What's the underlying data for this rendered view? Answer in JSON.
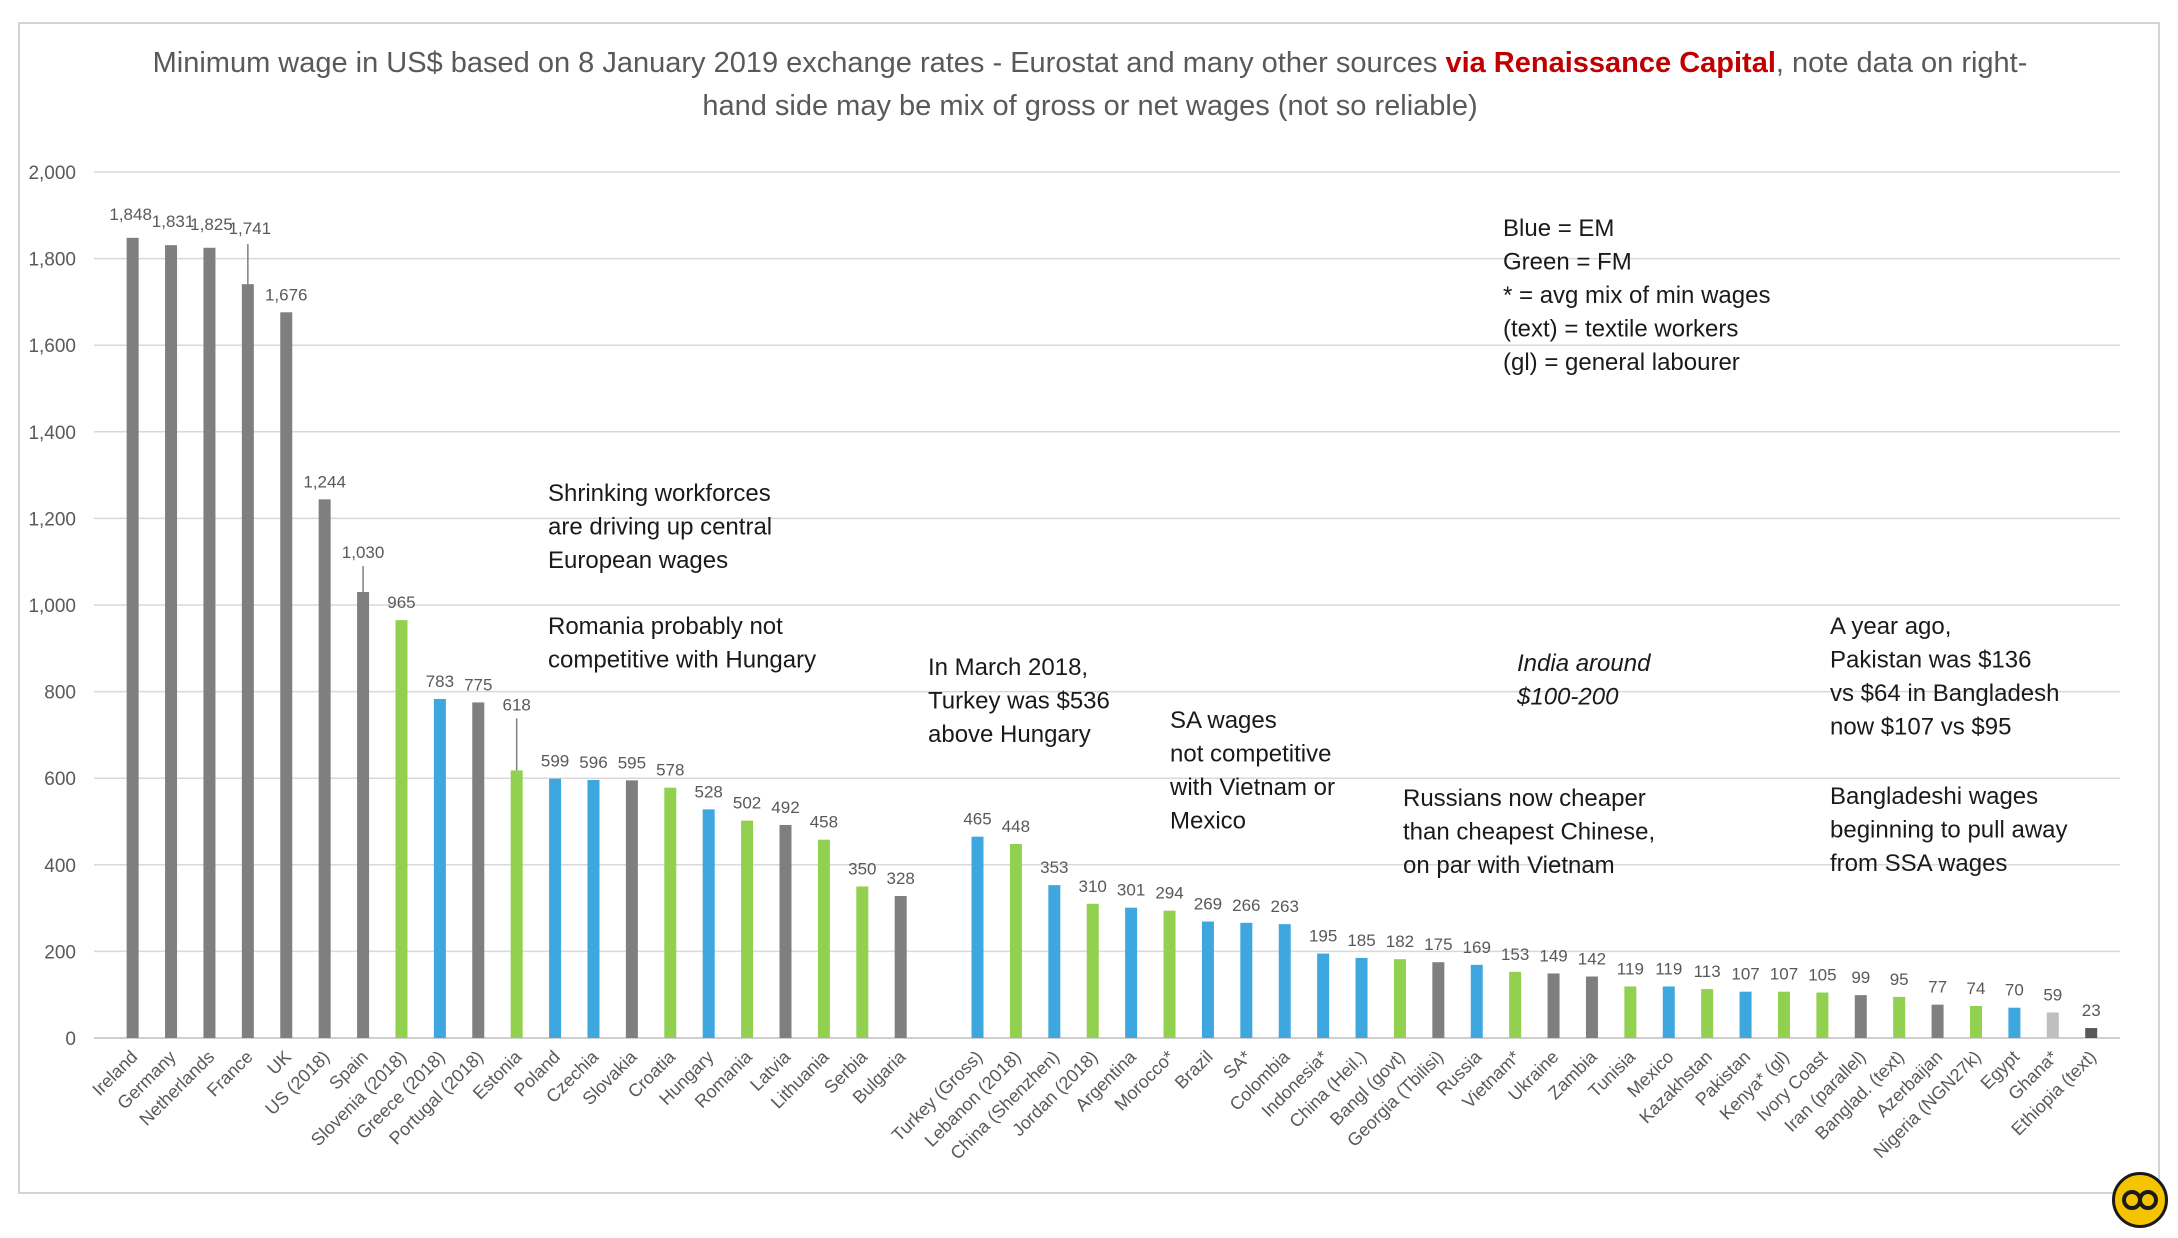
{
  "title": {
    "part1": "Minimum wage in US$ based on 8 January 2019 exchange rates - Eurostat and many other sources ",
    "red": "via Renaissance Capital",
    "part2": ", note data on right-hand side may be mix of gross or net wages (not so reliable)"
  },
  "colors": {
    "developed": "#7f7f7f",
    "em_blue": "#3fa7e0",
    "fm_green": "#92d050",
    "light_gray": "#bfbfbf",
    "dark_gray": "#595959",
    "gridline": "#d9d9d9",
    "axis_text": "#595959"
  },
  "chart_data": {
    "type": "bar",
    "ylim": [
      0,
      2000
    ],
    "yticks": [
      "0",
      "200",
      "400",
      "600",
      "800",
      "1,000",
      "1,200",
      "1,400",
      "1,600",
      "1,800",
      "2,000"
    ],
    "grid": true,
    "categories": [
      "Ireland",
      "Germany",
      "Netherlands",
      "France",
      "UK",
      "US (2018)",
      "Spain",
      "Slovenia (2018)",
      "Greece (2018)",
      "Portugal (2018)",
      "Estonia",
      "Poland",
      "Czechia",
      "Slovakia",
      "Croatia",
      "Hungary",
      "Romania",
      "Latvia",
      "Lithuania",
      "Serbia",
      "Bulgaria",
      "",
      "Turkey (Gross)",
      "Lebanon (2018)",
      "China (Shenzhen)",
      "Jordan (2018)",
      "Argentina",
      "Morocco*",
      "Brazil",
      "SA*",
      "Colombia",
      "Indonesia*",
      "China (Heil.)",
      "Bangl (govt)",
      "Georgia (Tbilisi)",
      "Russia",
      "Vietnam*",
      "Ukraine",
      "Zambia",
      "Tunisia",
      "Mexico",
      "Kazakhstan",
      "Pakistan",
      "Kenya* (gl)",
      "Ivory Coast",
      "Iran (parallel)",
      "Banglad. (text)",
      "Azerbaijan",
      "Nigeria (NGN27k)",
      "Egypt",
      "Ghana*",
      "Ethiopia (text)"
    ],
    "values": [
      1848,
      1831,
      1825,
      1741,
      1676,
      1244,
      1030,
      965,
      783,
      775,
      618,
      599,
      596,
      595,
      578,
      528,
      502,
      492,
      458,
      350,
      328,
      null,
      465,
      448,
      353,
      310,
      301,
      294,
      269,
      266,
      263,
      195,
      185,
      182,
      175,
      169,
      153,
      149,
      142,
      119,
      119,
      113,
      107,
      107,
      105,
      99,
      95,
      77,
      74,
      70,
      59,
      23
    ],
    "value_labels": [
      "1,848",
      "1,831",
      "1,825",
      "1,741",
      "1,676",
      "1,244",
      "1,030",
      "965",
      "783",
      "775",
      "618",
      "599",
      "596",
      "595",
      "578",
      "528",
      "502",
      "492",
      "458",
      "350",
      "328",
      "",
      "465",
      "448",
      "353",
      "310",
      "301",
      "294",
      "269",
      "266",
      "263",
      "195",
      "185",
      "182",
      "175",
      "169",
      "153",
      "149",
      "142",
      "119",
      "119",
      "113",
      "107",
      "107",
      "105",
      "99",
      "95",
      "77",
      "74",
      "70",
      "59",
      "23"
    ],
    "bar_colors": [
      "developed",
      "developed",
      "developed",
      "developed",
      "developed",
      "developed",
      "developed",
      "fm_green",
      "em_blue",
      "developed",
      "fm_green",
      "em_blue",
      "em_blue",
      "developed",
      "fm_green",
      "em_blue",
      "fm_green",
      "developed",
      "fm_green",
      "fm_green",
      "developed",
      "",
      "em_blue",
      "fm_green",
      "em_blue",
      "fm_green",
      "em_blue",
      "fm_green",
      "em_blue",
      "em_blue",
      "em_blue",
      "em_blue",
      "em_blue",
      "fm_green",
      "developed",
      "em_blue",
      "fm_green",
      "developed",
      "developed",
      "fm_green",
      "em_blue",
      "fm_green",
      "em_blue",
      "fm_green",
      "fm_green",
      "developed",
      "fm_green",
      "developed",
      "fm_green",
      "em_blue",
      "light_gray",
      "dark_gray"
    ],
    "annotations": [
      {
        "id": "legend",
        "lines": [
          "Blue = EM",
          "Green = FM",
          "* = avg mix of min wages",
          "(text) = textile workers",
          "(gl) = general labourer"
        ]
      },
      {
        "id": "shrinking",
        "lines": [
          "Shrinking workforces",
          "are driving up central",
          "European wages"
        ]
      },
      {
        "id": "romania",
        "lines": [
          "Romania probably not",
          "competitive with Hungary"
        ]
      },
      {
        "id": "turkey",
        "lines": [
          "In March 2018,",
          "Turkey was $536",
          "above Hungary"
        ]
      },
      {
        "id": "sa",
        "lines": [
          "SA wages",
          "not competitive",
          "with Vietnam or",
          "Mexico"
        ]
      },
      {
        "id": "india",
        "lines": [
          "India around",
          "$100-200"
        ],
        "italic": true
      },
      {
        "id": "russians",
        "lines": [
          "Russians now cheaper",
          "than cheapest Chinese,",
          "on par with Vietnam"
        ]
      },
      {
        "id": "pakistan",
        "lines": [
          "A year ago,",
          "Pakistan was $136",
          "vs $64 in Bangladesh",
          "now $107 vs $95"
        ]
      },
      {
        "id": "bangladeshi",
        "lines": [
          "Bangladeshi wages",
          "beginning to pull away",
          "from SSA wages"
        ]
      }
    ]
  }
}
